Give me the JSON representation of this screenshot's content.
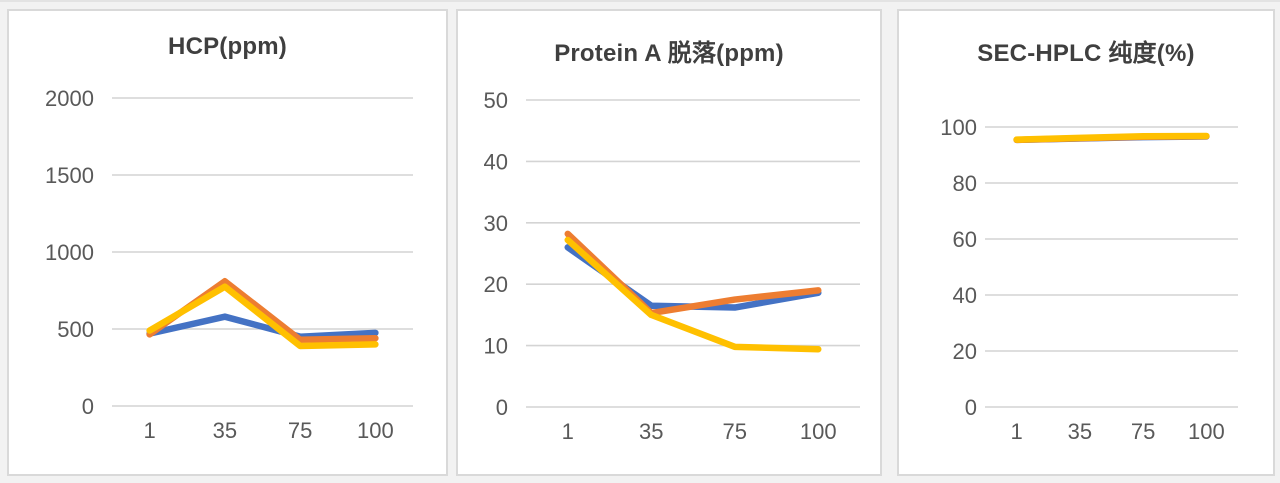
{
  "page": {
    "background_color": "#f2f2f2",
    "panel_border_color": "#d9d9d9",
    "grid_color": "#d4d4d4",
    "tick_label_color": "#595959",
    "title_color": "#3f3f3f"
  },
  "chart_data": [
    {
      "type": "line",
      "title": "HCP(ppm)",
      "xlabel": "",
      "ylabel": "",
      "categories": [
        "1",
        "35",
        "75",
        "100"
      ],
      "ylim": [
        0,
        2000
      ],
      "yticks": [
        0,
        500,
        1000,
        1500,
        2000
      ],
      "grid": true,
      "legend": "none",
      "series": [
        {
          "name": "series-blue",
          "color": "#4472C4",
          "values": [
            470,
            580,
            450,
            475
          ]
        },
        {
          "name": "series-orange",
          "color": "#ED7D31",
          "values": [
            465,
            810,
            430,
            440
          ]
        },
        {
          "name": "series-yellow",
          "color": "#FFC000",
          "values": [
            490,
            775,
            390,
            400
          ]
        }
      ]
    },
    {
      "type": "line",
      "title": "Protein A 脱落(ppm)",
      "xlabel": "",
      "ylabel": "",
      "categories": [
        "1",
        "35",
        "75",
        "100"
      ],
      "ylim": [
        0,
        50
      ],
      "yticks": [
        0,
        10,
        20,
        30,
        40,
        50
      ],
      "grid": true,
      "legend": "none",
      "series": [
        {
          "name": "series-blue",
          "color": "#4472C4",
          "values": [
            26,
            16.5,
            16.2,
            18.6
          ]
        },
        {
          "name": "series-orange",
          "color": "#ED7D31",
          "values": [
            28.2,
            15.3,
            17.5,
            19
          ]
        },
        {
          "name": "series-yellow",
          "color": "#FFC000",
          "values": [
            27.2,
            15,
            9.8,
            9.4
          ]
        }
      ]
    },
    {
      "type": "line",
      "title": "SEC-HPLC 纯度(%)",
      "xlabel": "",
      "ylabel": "",
      "categories": [
        "1",
        "35",
        "75",
        "100"
      ],
      "ylim": [
        0,
        100
      ],
      "yticks": [
        0,
        20,
        40,
        60,
        80,
        100
      ],
      "grid": true,
      "legend": "none",
      "series": [
        {
          "name": "series-blue",
          "color": "#4472C4",
          "values": [
            95.4,
            95.9,
            96.4,
            96.6
          ]
        },
        {
          "name": "series-orange",
          "color": "#ED7D31",
          "values": [
            95.4,
            96.0,
            96.5,
            96.7
          ]
        },
        {
          "name": "series-yellow",
          "color": "#FFC000",
          "values": [
            95.5,
            96.1,
            96.7,
            96.8
          ]
        }
      ]
    }
  ]
}
